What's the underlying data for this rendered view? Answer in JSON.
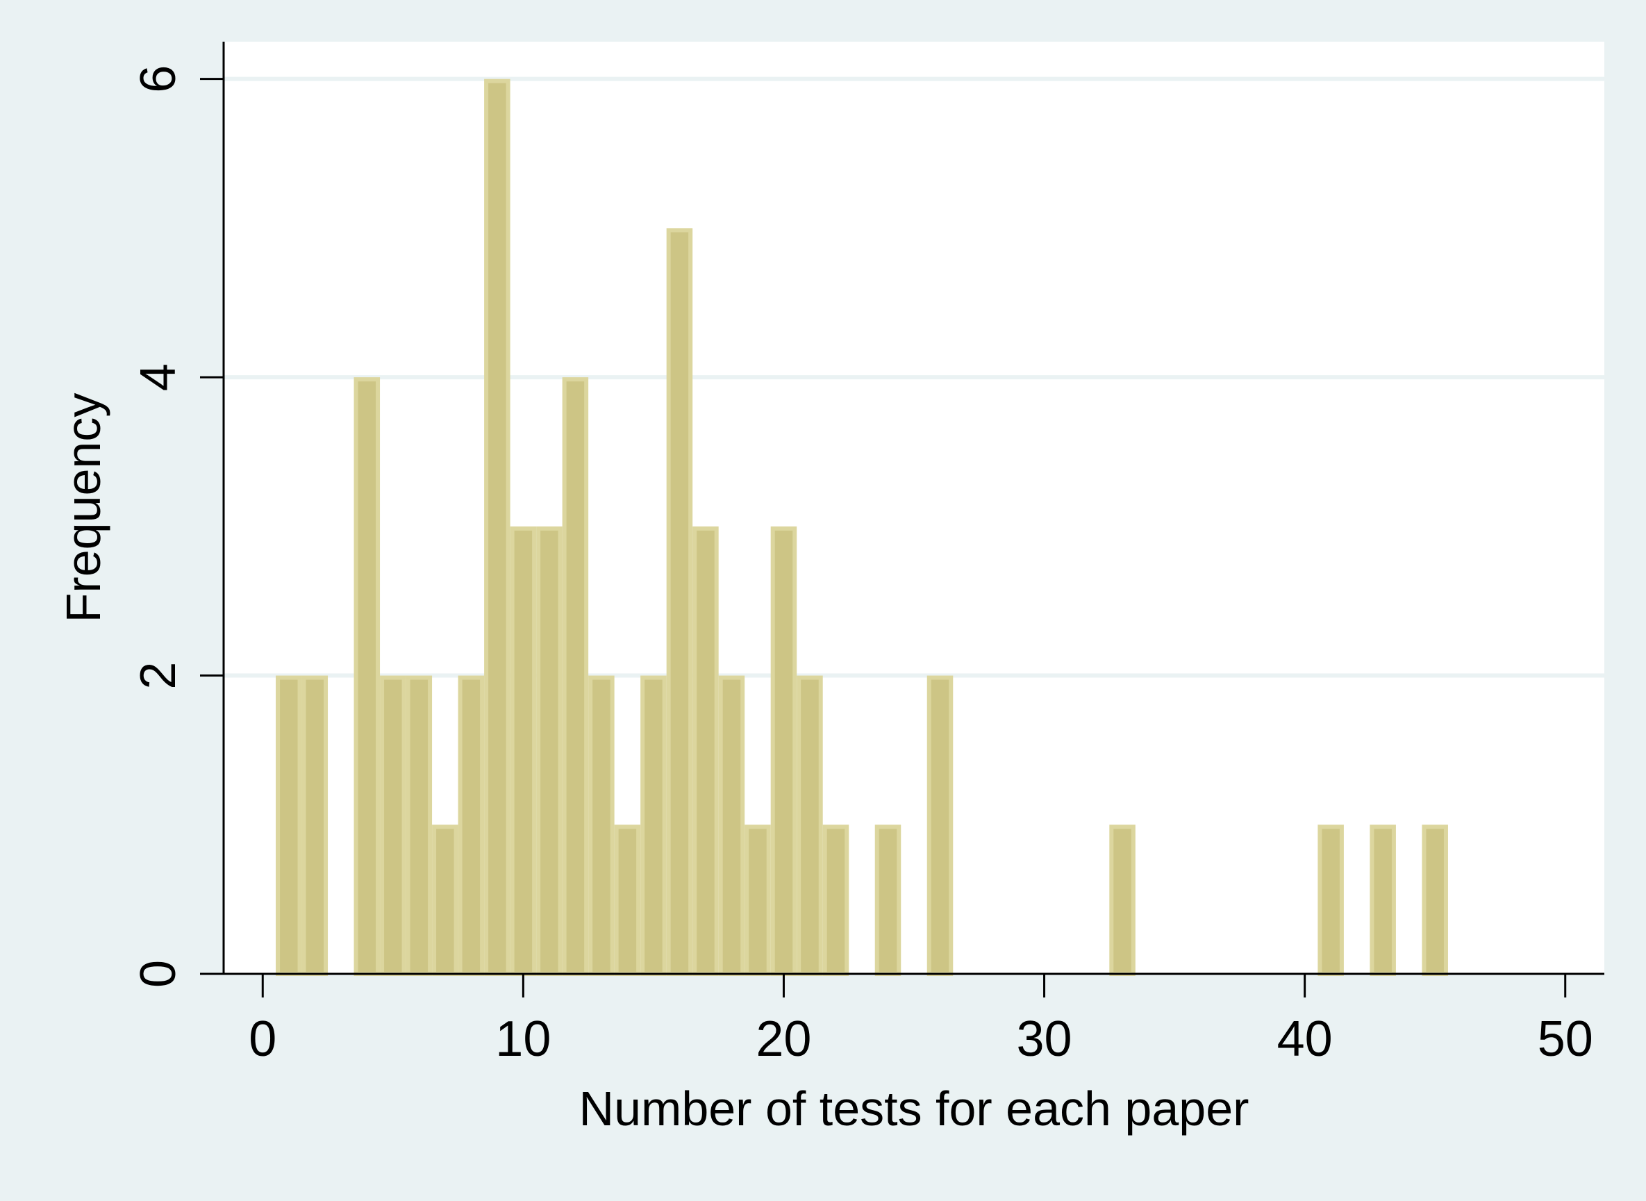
{
  "chart_data": {
    "type": "bar",
    "subtype": "histogram",
    "title": "",
    "xlabel": "Number of tests for each paper",
    "ylabel": "Frequency",
    "xlim": [
      -1.5,
      51.5
    ],
    "ylim": [
      0,
      6.25
    ],
    "xticks": [
      0,
      10,
      20,
      30,
      40,
      50
    ],
    "xtick_labels": [
      "0",
      "10",
      "20",
      "30",
      "40",
      "50"
    ],
    "yticks": [
      0,
      2,
      4,
      6
    ],
    "ytick_labels": [
      "0",
      "2",
      "4",
      "6"
    ],
    "grid": "horizontal",
    "legend": "none",
    "bin_width": 1,
    "bins": [
      {
        "x": 1,
        "value": 2
      },
      {
        "x": 2,
        "value": 2
      },
      {
        "x": 4,
        "value": 4
      },
      {
        "x": 5,
        "value": 2
      },
      {
        "x": 6,
        "value": 2
      },
      {
        "x": 7,
        "value": 1
      },
      {
        "x": 8,
        "value": 2
      },
      {
        "x": 9,
        "value": 6
      },
      {
        "x": 10,
        "value": 3
      },
      {
        "x": 11,
        "value": 3
      },
      {
        "x": 12,
        "value": 4
      },
      {
        "x": 13,
        "value": 2
      },
      {
        "x": 14,
        "value": 1
      },
      {
        "x": 15,
        "value": 2
      },
      {
        "x": 16,
        "value": 5
      },
      {
        "x": 17,
        "value": 3
      },
      {
        "x": 18,
        "value": 2
      },
      {
        "x": 19,
        "value": 1
      },
      {
        "x": 20,
        "value": 3
      },
      {
        "x": 21,
        "value": 2
      },
      {
        "x": 22,
        "value": 1
      },
      {
        "x": 24,
        "value": 1
      },
      {
        "x": 26,
        "value": 2
      },
      {
        "x": 33,
        "value": 1
      },
      {
        "x": 41,
        "value": 1
      },
      {
        "x": 43,
        "value": 1
      },
      {
        "x": 45,
        "value": 1
      }
    ],
    "colors": {
      "bar_fill": "#cdc585",
      "bar_edge": "#dcd69e",
      "outer_background": "#eaf2f3",
      "plot_background": "#ffffff",
      "gridline": "#eaf2f3",
      "axis": "#000000"
    }
  }
}
